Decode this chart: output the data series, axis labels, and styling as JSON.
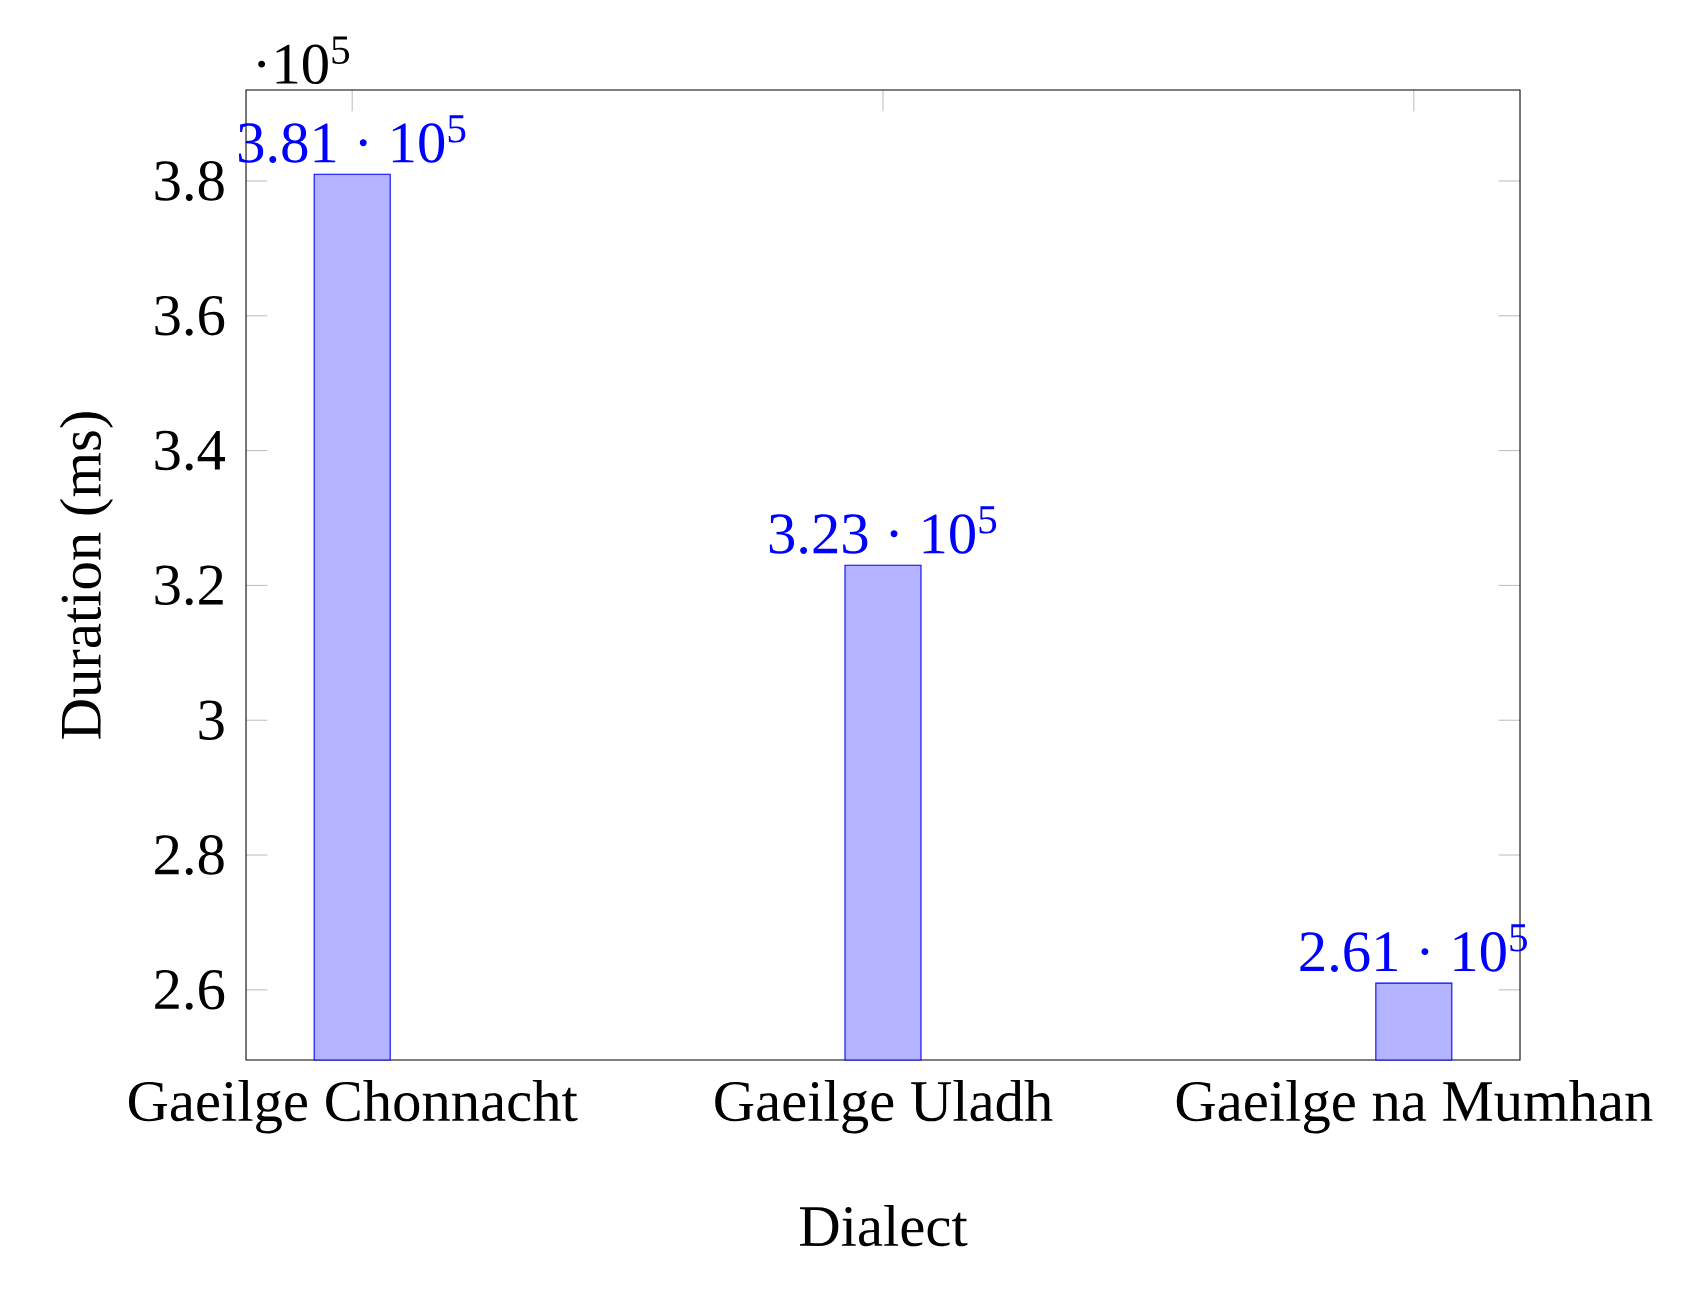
{
  "chart_data": {
    "type": "bar",
    "categories": [
      "Gaeilge Chonnacht",
      "Gaeilge Uladh",
      "Gaeilge na Mumhan"
    ],
    "values": [
      3.81,
      3.23,
      2.61
    ],
    "color": "#b3b3ff",
    "xlabel": "Dialect",
    "ylabel": "Duration (ms)",
    "ylim": [
      2.496,
      3.935
    ],
    "yticks": [
      2.6,
      2.8,
      3,
      3.2,
      3.4,
      3.6,
      3.8
    ],
    "annotations": [
      "·10$^{5}$",
      {
        "text": "3.81 · 10$^{5}$",
        "x": "Gaeilge Chonnacht",
        "y": 3.81
      },
      {
        "text": "3.23 · 10$^{5}$",
        "x": "Gaeilge Uladh",
        "y": 3.23
      },
      {
        "text": "2.61 · 10$^{5}$",
        "x": "Gaeilge na Mumhan",
        "y": 2.61
      }
    ],
    "grid": false
  }
}
